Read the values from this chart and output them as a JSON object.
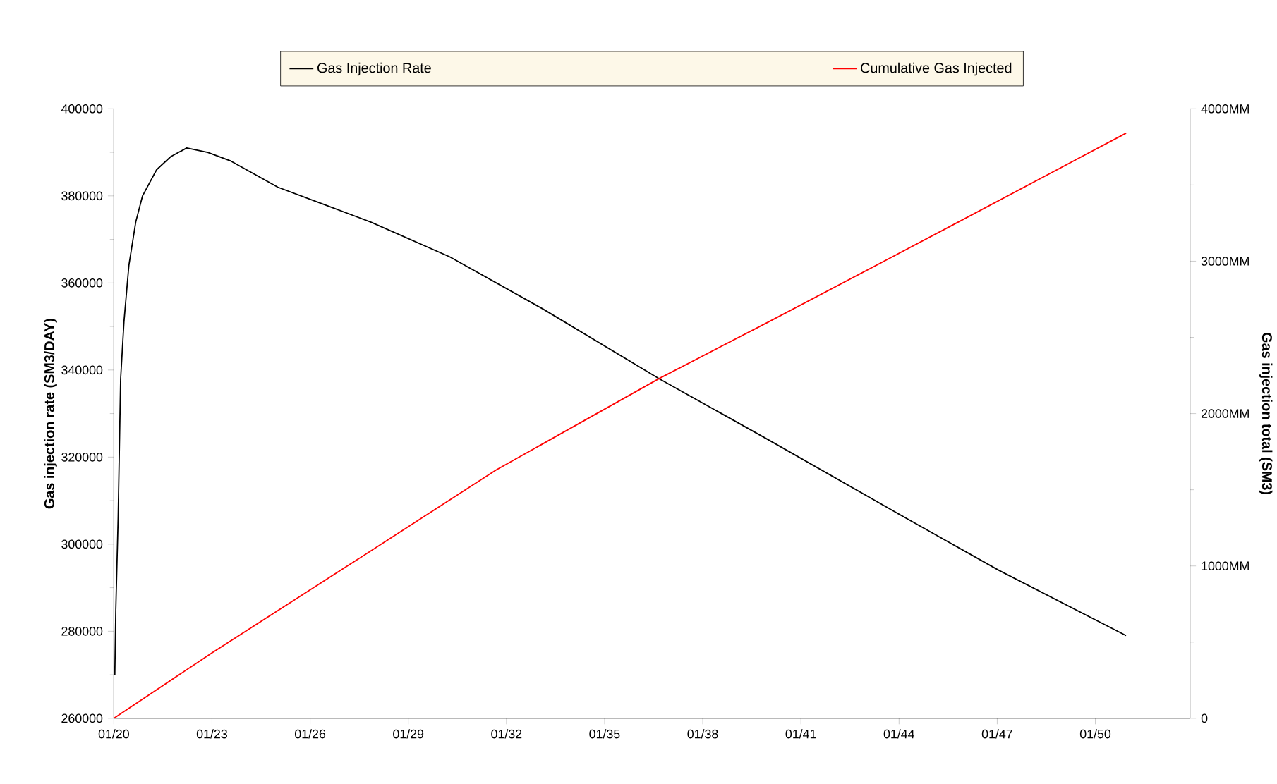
{
  "chart_data": {
    "type": "line",
    "ylabel": "Gas injection rate (SM3/DAY)",
    "y2label": "Gas injection total (SM3)",
    "xlim": [
      "2020-01-01",
      "2052-11-23"
    ],
    "xticks": [
      {
        "value": "2020-01",
        "label": "01/20"
      },
      {
        "value": "2023-01",
        "label": "01/23"
      },
      {
        "value": "2026-01",
        "label": "01/26"
      },
      {
        "value": "2029-01",
        "label": "01/29"
      },
      {
        "value": "2032-01",
        "label": "01/32"
      },
      {
        "value": "2035-01",
        "label": "01/35"
      },
      {
        "value": "2038-01",
        "label": "01/38"
      },
      {
        "value": "2041-01",
        "label": "01/41"
      },
      {
        "value": "2044-01",
        "label": "01/44"
      },
      {
        "value": "2047-01",
        "label": "01/47"
      },
      {
        "value": "2050-01",
        "label": "01/50"
      }
    ],
    "ylim": [
      260000,
      400000
    ],
    "yticks": [
      260000,
      280000,
      300000,
      320000,
      340000,
      360000,
      380000,
      400000
    ],
    "y2lim": [
      0,
      4000
    ],
    "y2ticks": [
      0,
      {
        "value": 1000,
        "label": "1000MM"
      },
      {
        "value": 2000,
        "label": "2000MM"
      },
      {
        "value": 3000,
        "label": "3000MM"
      },
      {
        "value": 4000,
        "label": "4000MM"
      }
    ],
    "legend": "top",
    "marker": "none",
    "line_style": "solid",
    "series": [
      {
        "name": "Gas Injection Rate",
        "color": "#000000",
        "x": [
          "2020-01-12",
          "2020-01-23",
          "2020-02-18",
          "2020-03-17",
          "2020-04-23",
          "2020-06-17",
          "2020-09-02",
          "2020-11-17",
          "2021-04-23",
          "2021-09-27",
          "2022-03-25",
          "2022-11-14",
          "2023-07-31",
          "2025-01-05",
          "2026-06-07",
          "2027-11-06",
          "2030-04-08",
          "2033-02-14",
          "2036-09-02",
          "2040-01-01",
          "2044-03-17",
          "2047-01-19",
          "2050-12-10"
        ],
        "values": [
          270000,
          285000,
          306000,
          338000,
          351000,
          364000,
          374000,
          380000,
          386000,
          389000,
          391000,
          390000,
          388000,
          382000,
          378000,
          374000,
          366000,
          354000,
          338000,
          324000,
          306000,
          294000,
          279000
        ]
      },
      {
        "name": "Cumulative Gas Injected",
        "color": "#ff0000",
        "axis": "y2",
        "x": [
          "2020-01-01",
          "2023-01-01",
          "2027-06-07",
          "2031-09-09",
          "2036-09-02",
          "2040-01-01",
          "2045-06-28",
          "2050-12-10"
        ],
        "values": [
          0,
          430,
          1040,
          1630,
          2230,
          2600,
          3220,
          3840
        ]
      }
    ]
  }
}
